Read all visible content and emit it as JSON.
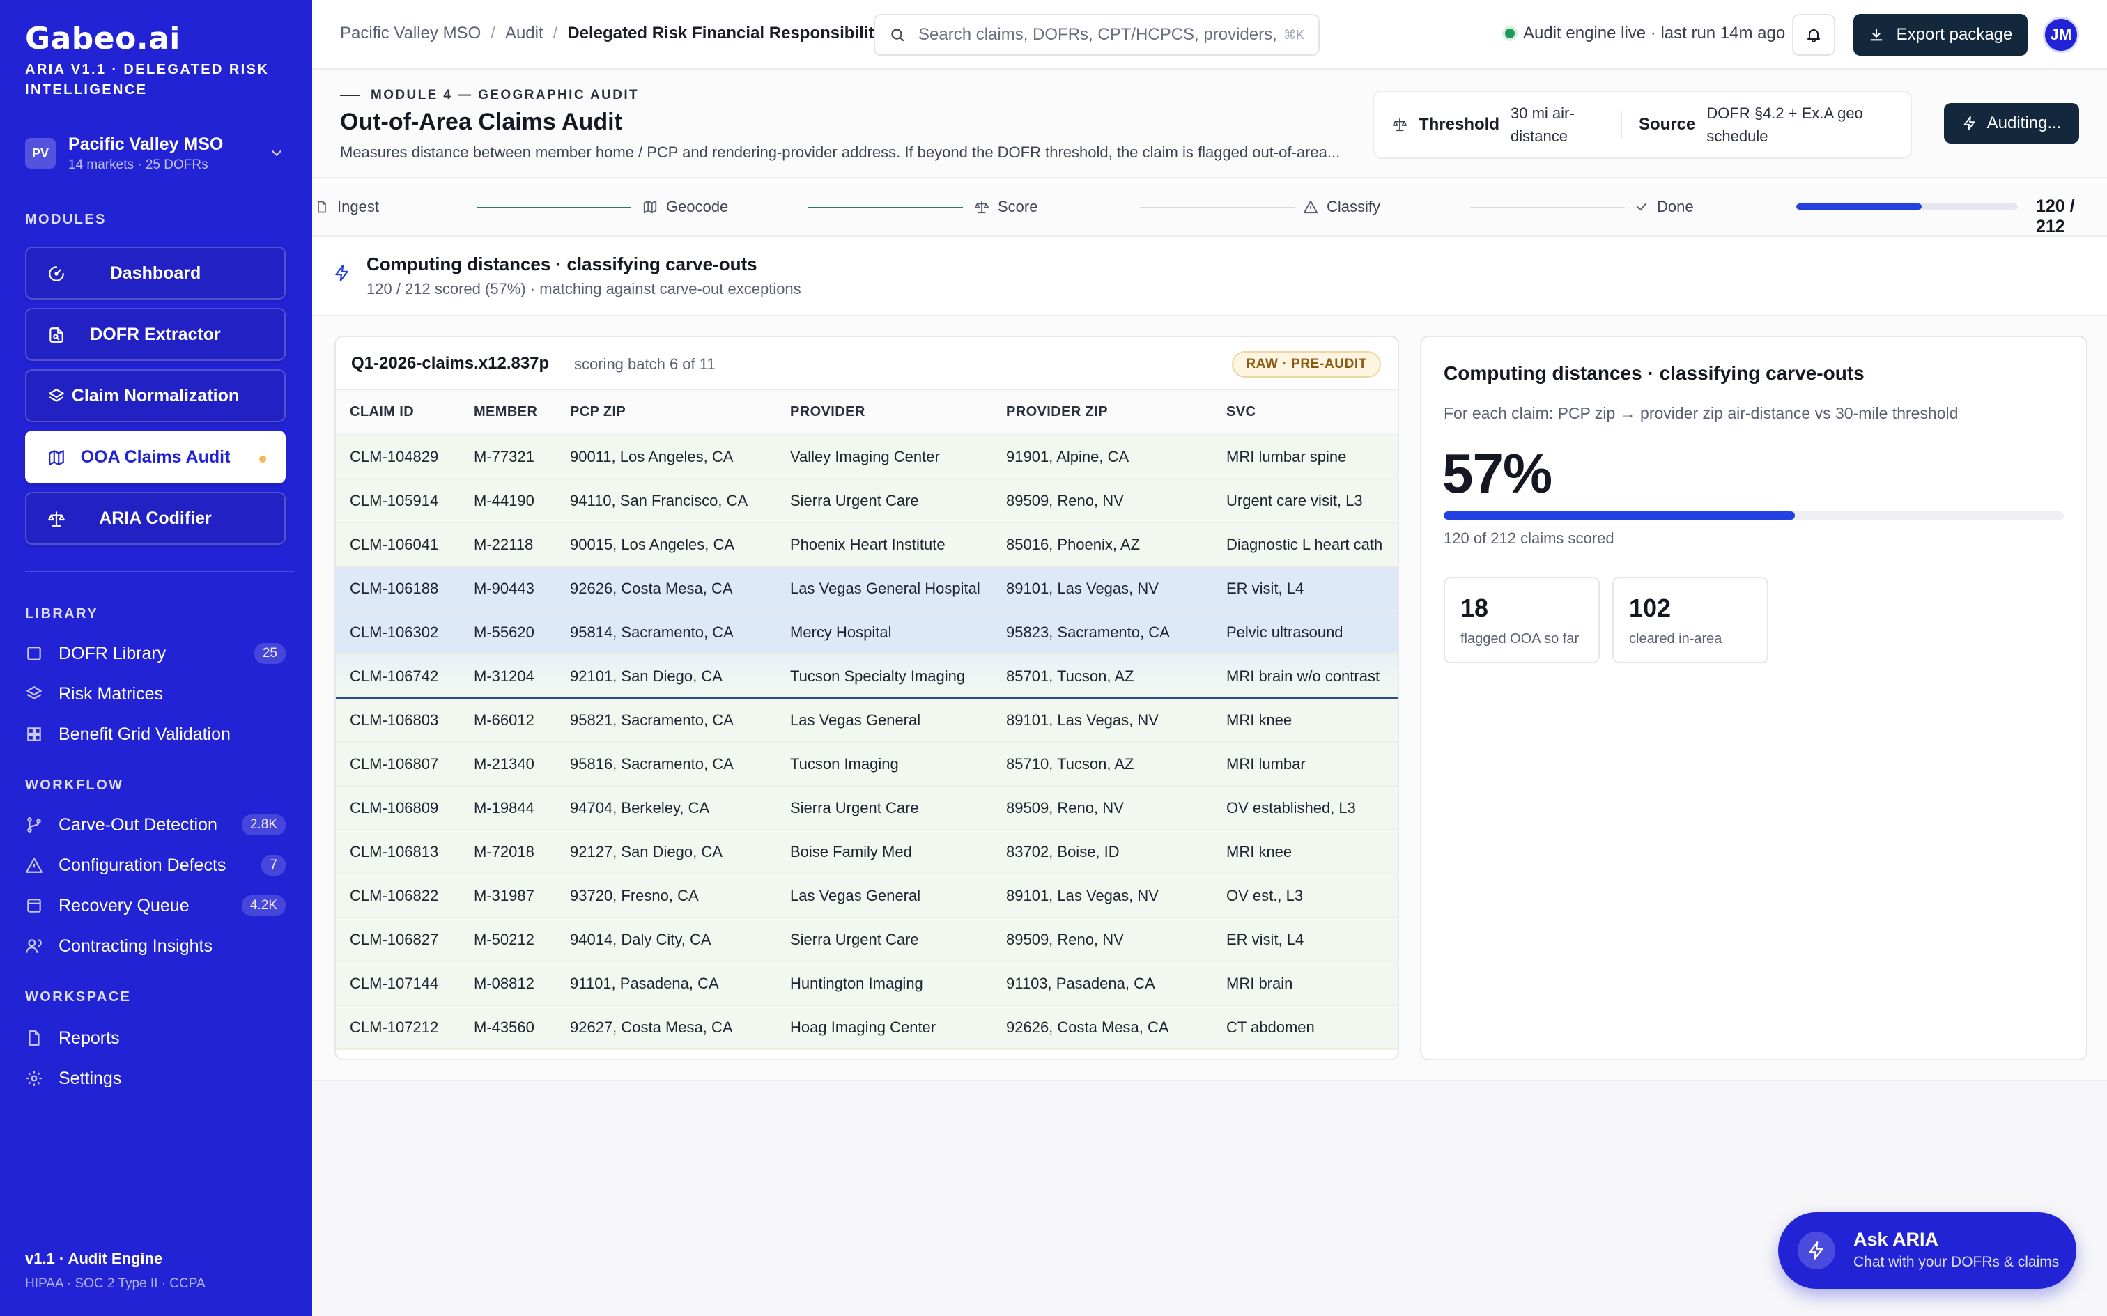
{
  "sidebar": {
    "logo": "Gabeo.ai",
    "subtitle": "ARIA V1.1 · DELEGATED RISK INTELLIGENCE",
    "org": {
      "initials": "PV",
      "name": "Pacific Valley MSO",
      "meta": "14 markets · 25 DOFRs"
    },
    "modules_label": "MODULES",
    "modules": [
      {
        "label": "Dashboard",
        "icon": "gauge-icon",
        "active": false
      },
      {
        "label": "DOFR Extractor",
        "icon": "file-scan-icon",
        "active": false
      },
      {
        "label": "Claim Normalization",
        "icon": "layers-icon",
        "active": false
      },
      {
        "label": "OOA Claims Audit",
        "icon": "map-icon",
        "active": true
      },
      {
        "label": "ARIA Codifier",
        "icon": "scale-icon",
        "active": false
      }
    ],
    "library_label": "LIBRARY",
    "library": [
      {
        "label": "DOFR Library",
        "badge": "25",
        "icon": "book-icon"
      },
      {
        "label": "Risk Matrices",
        "badge": "",
        "icon": "layers-icon"
      },
      {
        "label": "Benefit Grid Validation",
        "badge": "",
        "icon": "grid-icon"
      }
    ],
    "workflow_label": "WORKFLOW",
    "workflow": [
      {
        "label": "Carve-Out Detection",
        "badge": "2.8K",
        "icon": "git-branch-icon"
      },
      {
        "label": "Configuration Defects",
        "badge": "7",
        "icon": "warning-icon"
      },
      {
        "label": "Recovery Queue",
        "badge": "4.2K",
        "icon": "inbox-icon"
      },
      {
        "label": "Contracting Insights",
        "badge": "",
        "icon": "users-icon"
      }
    ],
    "workspace_label": "WORKSPACE",
    "workspace": [
      {
        "label": "Reports",
        "badge": "",
        "icon": "report-icon"
      },
      {
        "label": "Settings",
        "badge": "",
        "icon": "gear-icon"
      }
    ],
    "footer": {
      "version": "v1.1 · Audit Engine",
      "compliance": "HIPAA · SOC 2 Type II · CCPA"
    }
  },
  "topbar": {
    "breadcrumbs": [
      "Pacific Valley MSO",
      "Audit",
      "Delegated Risk Financial Responsibility"
    ],
    "search_placeholder": "Search claims, DOFRs, CPT/HCPCS, providers,",
    "search_shortcut": "⌘K",
    "engine_status": "Audit engine live · last run 14m ago",
    "export_label": "Export package",
    "user_initials": "JM"
  },
  "module": {
    "eyebrow": "MODULE 4 — GEOGRAPHIC AUDIT",
    "title": "Out-of-Area Claims Audit",
    "description": "Measures distance between member home / PCP and rendering-provider address. If beyond the DOFR threshold, the claim is flagged out-of-area...",
    "threshold_label": "Threshold",
    "threshold_value": "30 mi air-distance",
    "source_label": "Source",
    "source_value": "DOFR §4.2 + Ex.A geo schedule",
    "action_label": "Auditing..."
  },
  "pipeline": {
    "steps": [
      {
        "label": "Ingest",
        "icon": "file-icon",
        "state": "done"
      },
      {
        "label": "Geocode",
        "icon": "map-icon",
        "state": "done"
      },
      {
        "label": "Score",
        "icon": "scale-icon",
        "state": "active"
      },
      {
        "label": "Classify",
        "icon": "warning-icon",
        "state": "pending"
      },
      {
        "label": "Done",
        "icon": "check-icon",
        "state": "pending"
      }
    ],
    "progress": 0.566,
    "count": "120 / 212"
  },
  "status": {
    "title": "Computing distances · classifying carve-outs",
    "subtitle": "120 / 212 scored (57%) · matching against carve-out exceptions"
  },
  "table": {
    "filename": "Q1-2026-claims.x12.837p",
    "batch": "scoring batch 6 of 11",
    "tag": "RAW · PRE-AUDIT",
    "columns": [
      "CLAIM ID",
      "MEMBER",
      "PCP ZIP",
      "PROVIDER",
      "PROVIDER ZIP",
      "SVC"
    ],
    "rows": [
      [
        "CLM-104829",
        "M-77321",
        "90011, Los Angeles, CA",
        "Valley Imaging Center",
        "91901, Alpine, CA",
        "MRI lumbar spine"
      ],
      [
        "CLM-105914",
        "M-44190",
        "94110, San Francisco, CA",
        "Sierra Urgent Care",
        "89509, Reno, NV",
        "Urgent care visit, L3"
      ],
      [
        "CLM-106041",
        "M-22118",
        "90015, Los Angeles, CA",
        "Phoenix Heart Institute",
        "85016, Phoenix, AZ",
        "Diagnostic L heart cath"
      ],
      [
        "CLM-106188",
        "M-90443",
        "92626, Costa Mesa, CA",
        "Las Vegas General Hospital",
        "89101, Las Vegas, NV",
        "ER visit, L4"
      ],
      [
        "CLM-106302",
        "M-55620",
        "95814, Sacramento, CA",
        "Mercy Hospital",
        "95823, Sacramento, CA",
        "Pelvic ultrasound"
      ],
      [
        "CLM-106742",
        "M-31204",
        "92101, San Diego, CA",
        "Tucson Specialty Imaging",
        "85701, Tucson, AZ",
        "MRI brain w/o contrast"
      ],
      [
        "CLM-106803",
        "M-66012",
        "95821, Sacramento, CA",
        "Las Vegas General",
        "89101, Las Vegas, NV",
        "MRI knee"
      ],
      [
        "CLM-106807",
        "M-21340",
        "95816, Sacramento, CA",
        "Tucson Imaging",
        "85710, Tucson, AZ",
        "MRI lumbar"
      ],
      [
        "CLM-106809",
        "M-19844",
        "94704, Berkeley, CA",
        "Sierra Urgent Care",
        "89509, Reno, NV",
        "OV established, L3"
      ],
      [
        "CLM-106813",
        "M-72018",
        "92127, San Diego, CA",
        "Boise Family Med",
        "83702, Boise, ID",
        "MRI knee"
      ],
      [
        "CLM-106822",
        "M-31987",
        "93720, Fresno, CA",
        "Las Vegas General",
        "89101, Las Vegas, NV",
        "OV est., L3"
      ],
      [
        "CLM-106827",
        "M-50212",
        "94014, Daly City, CA",
        "Sierra Urgent Care",
        "89509, Reno, NV",
        "ER visit, L4"
      ],
      [
        "CLM-107144",
        "M-08812",
        "91101, Pasadena, CA",
        "Huntington Imaging",
        "91103, Pasadena, CA",
        "MRI brain"
      ],
      [
        "CLM-107212",
        "M-43560",
        "92627, Costa Mesa, CA",
        "Hoag Imaging Center",
        "92626, Costa Mesa, CA",
        "CT abdomen"
      ]
    ]
  },
  "score": {
    "title": "Computing distances · classifying carve-outs",
    "description": "For each claim: PCP zip → provider zip air-distance vs 30-mile threshold",
    "percent": "57%",
    "progress": 0.566,
    "count": "120 of 212 claims scored",
    "flagged": {
      "value": "18",
      "label": "flagged OOA so far"
    },
    "cleared": {
      "value": "102",
      "label": "cleared in-area"
    }
  },
  "ask": {
    "title": "Ask ARIA",
    "subtitle": "Chat with your DOFRs & claims"
  },
  "colors": {
    "brand": "#2323d6",
    "dark_button": "#13283d",
    "progress": "#2340e0",
    "pipeline_done": "#2a7b60"
  }
}
